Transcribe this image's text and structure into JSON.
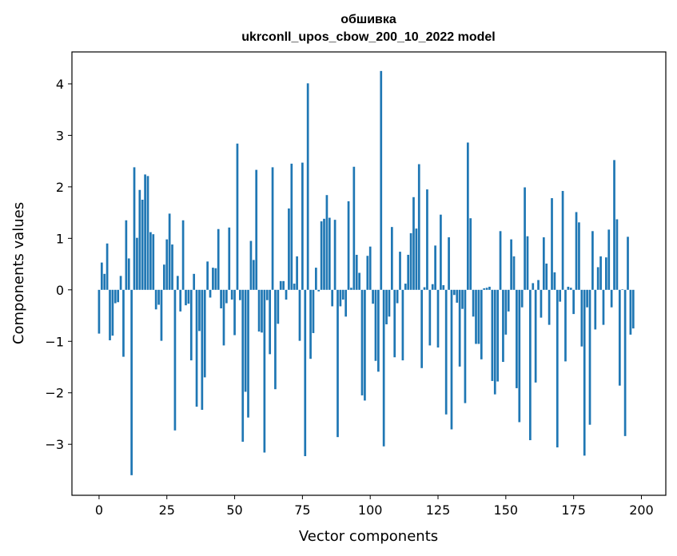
{
  "chart_data": {
    "type": "bar",
    "title": "обшивка",
    "subtitle": "ukrconll_upos_cbow_200_10_2022 model",
    "xlabel": "Vector components",
    "ylabel": "Components values",
    "xlim": [
      -10,
      209
    ],
    "ylim": [
      -3.99,
      4.62
    ],
    "xticks": [
      0,
      25,
      50,
      75,
      100,
      125,
      150,
      175,
      200
    ],
    "yticks": [
      -3,
      -2,
      -1,
      0,
      1,
      2,
      3,
      4
    ],
    "bar_color": "#1f77b4",
    "grid": false,
    "legend": false,
    "values": [
      -0.85,
      0.53,
      0.31,
      0.9,
      -0.98,
      -0.89,
      -0.26,
      -0.24,
      0.27,
      -1.3,
      1.35,
      0.61,
      -3.6,
      2.38,
      1.01,
      1.94,
      1.75,
      2.24,
      2.21,
      1.12,
      1.08,
      -0.38,
      -0.29,
      -0.99,
      0.49,
      0.98,
      1.48,
      0.88,
      -2.73,
      0.27,
      -0.42,
      1.35,
      -0.3,
      -0.27,
      -1.37,
      0.31,
      -2.27,
      -0.8,
      -2.33,
      -1.7,
      0.55,
      -0.15,
      0.43,
      0.42,
      1.18,
      -0.36,
      -1.08,
      -0.26,
      1.21,
      -0.19,
      -0.88,
      2.84,
      -0.2,
      -2.95,
      -1.98,
      -2.48,
      0.95,
      0.58,
      2.33,
      -0.81,
      -0.83,
      -3.16,
      -0.2,
      -1.25,
      2.38,
      -1.93,
      -0.66,
      0.17,
      0.17,
      -0.19,
      1.58,
      2.45,
      0.12,
      0.65,
      -0.99,
      2.47,
      -3.23,
      4.01,
      -1.34,
      -0.84,
      0.43,
      -0.03,
      1.33,
      1.38,
      1.84,
      1.4,
      -0.32,
      1.36,
      -2.86,
      -0.32,
      -0.19,
      -0.52,
      1.72,
      0.04,
      2.39,
      0.68,
      0.33,
      -2.05,
      -2.15,
      0.66,
      0.84,
      -0.27,
      -1.38,
      -1.59,
      4.25,
      -3.04,
      -0.67,
      -0.52,
      1.22,
      -1.31,
      -0.26,
      0.74,
      -1.37,
      0.12,
      0.68,
      1.1,
      1.8,
      1.19,
      2.44,
      -1.52,
      0.05,
      1.95,
      -1.08,
      0.11,
      0.86,
      -1.12,
      1.46,
      0.09,
      -2.42,
      1.02,
      -2.71,
      -0.1,
      -0.25,
      -1.49,
      -0.37,
      -2.2,
      2.86,
      1.39,
      -0.52,
      -1.05,
      -1.05,
      -1.35,
      0.03,
      0.04,
      0.06,
      -1.77,
      -2.03,
      -1.78,
      1.14,
      -1.4,
      -0.87,
      -0.42,
      0.98,
      0.65,
      -1.91,
      -2.57,
      -0.34,
      1.99,
      1.04,
      -2.92,
      0.13,
      -1.8,
      0.19,
      -0.54,
      1.02,
      0.51,
      -0.68,
      1.78,
      0.34,
      -3.06,
      -0.23,
      1.92,
      -1.39,
      0.06,
      0.04,
      -0.47,
      1.51,
      1.31,
      -1.1,
      -3.22,
      -0.34,
      -2.62,
      1.14,
      -0.77,
      0.44,
      0.65,
      -0.68,
      0.63,
      1.17,
      -0.34,
      2.52,
      1.37,
      -1.86,
      0.01,
      -2.84,
      1.03,
      -0.87,
      -0.75
    ]
  }
}
